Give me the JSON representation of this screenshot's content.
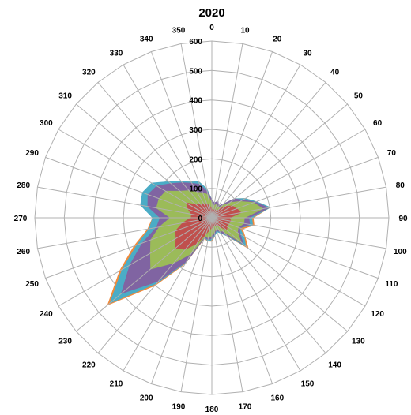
{
  "chart_data": {
    "type": "radar",
    "title": "2020",
    "categories": [
      "0",
      "10",
      "20",
      "30",
      "40",
      "50",
      "60",
      "70",
      "80",
      "90",
      "100",
      "110",
      "120",
      "130",
      "140",
      "150",
      "160",
      "170",
      "180",
      "190",
      "200",
      "210",
      "220",
      "230",
      "240",
      "250",
      "260",
      "270",
      "280",
      "290",
      "300",
      "310",
      "320",
      "330",
      "340",
      "350"
    ],
    "radial_ticks": [
      "0",
      "100",
      "200",
      "300",
      "400",
      "500",
      "600"
    ],
    "rlim": [
      0,
      600
    ],
    "grid": true,
    "series": [
      {
        "color": "#f08a3c",
        "values": [
          60,
          50,
          60,
          45,
          60,
          100,
          130,
          160,
          200,
          140,
          145,
          110,
          130,
          160,
          80,
          60,
          50,
          60,
          80,
          80,
          75,
          180,
          300,
          460,
          360,
          280,
          220,
          200,
          240,
          250,
          230,
          190,
          160,
          140,
          130,
          100
        ]
      },
      {
        "color": "#4bacc6",
        "values": [
          60,
          50,
          60,
          45,
          60,
          100,
          130,
          160,
          200,
          135,
          140,
          100,
          125,
          150,
          80,
          60,
          50,
          60,
          75,
          80,
          70,
          175,
          290,
          450,
          350,
          270,
          215,
          200,
          245,
          250,
          235,
          190,
          160,
          140,
          130,
          100
        ]
      },
      {
        "color": "#8064a2",
        "values": [
          60,
          50,
          60,
          45,
          60,
          100,
          120,
          155,
          195,
          125,
          130,
          100,
          110,
          140,
          75,
          55,
          45,
          55,
          70,
          75,
          70,
          170,
          280,
          400,
          320,
          250,
          190,
          175,
          220,
          230,
          215,
          180,
          155,
          135,
          120,
          90
        ]
      },
      {
        "color": "#9bbb59",
        "values": [
          50,
          40,
          50,
          40,
          50,
          80,
          110,
          150,
          175,
          110,
          110,
          95,
          100,
          130,
          60,
          50,
          40,
          50,
          60,
          70,
          65,
          140,
          200,
          270,
          240,
          220,
          180,
          140,
          190,
          190,
          180,
          140,
          120,
          100,
          90,
          80
        ]
      },
      {
        "color": "#c0504d",
        "values": [
          30,
          25,
          30,
          25,
          35,
          60,
          80,
          90,
          100,
          60,
          65,
          60,
          60,
          65,
          35,
          30,
          25,
          30,
          35,
          40,
          60,
          100,
          140,
          160,
          140,
          130,
          100,
          70,
          70,
          85,
          100,
          70,
          60,
          55,
          50,
          40
        ]
      }
    ]
  }
}
